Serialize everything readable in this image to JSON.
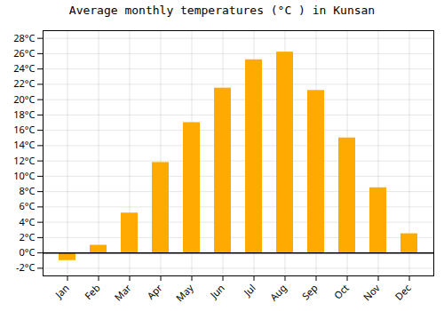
{
  "chart_data": {
    "type": "bar",
    "title": "Average monthly temperatures (°C ) in Kunsan",
    "categories": [
      "Jan",
      "Feb",
      "Mar",
      "Apr",
      "May",
      "Jun",
      "Jul",
      "Aug",
      "Sep",
      "Oct",
      "Nov",
      "Dec"
    ],
    "values": [
      -1.0,
      1.0,
      5.2,
      11.8,
      17.0,
      21.5,
      25.2,
      26.2,
      21.2,
      15.0,
      8.5,
      2.5
    ],
    "color": "#FFAA00",
    "ylim": [
      -3,
      29
    ],
    "yticks": [
      {
        "value": -2,
        "label": "-2°C"
      },
      {
        "value": 0,
        "label": "0°C"
      },
      {
        "value": 2,
        "label": "2°C"
      },
      {
        "value": 4,
        "label": "4°C"
      },
      {
        "value": 6,
        "label": "6°C"
      },
      {
        "value": 8,
        "label": "8°C"
      },
      {
        "value": 10,
        "label": "10°C"
      },
      {
        "value": 12,
        "label": "12°C"
      },
      {
        "value": 14,
        "label": "14°C"
      },
      {
        "value": 16,
        "label": "16°C"
      },
      {
        "value": 18,
        "label": "18°C"
      },
      {
        "value": 20,
        "label": "20°C"
      },
      {
        "value": 22,
        "label": "22°C"
      },
      {
        "value": 24,
        "label": "24°C"
      },
      {
        "value": 26,
        "label": "26°C"
      },
      {
        "value": 28,
        "label": "28°C"
      }
    ],
    "grid": true
  }
}
